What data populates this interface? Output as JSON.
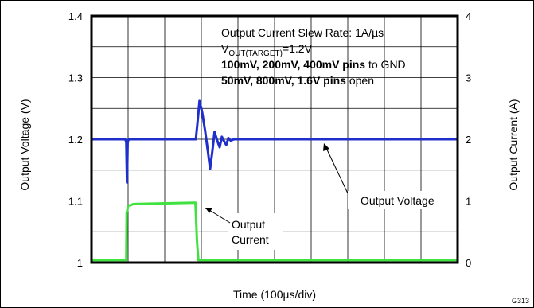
{
  "chart_data": {
    "type": "line",
    "xlabel": "Time (100µs/div)",
    "ylabel_left": "Output Voltage (V)",
    "ylabel_right": "Output Current (A)",
    "ylim_left": [
      1.0,
      1.4
    ],
    "ylim_right": [
      0,
      4
    ],
    "yticks_left": [
      "1",
      "1.1",
      "1.2",
      "1.3",
      "1.4"
    ],
    "yticks_right": [
      "0",
      "1",
      "2",
      "3",
      "4"
    ],
    "x_divisions": 10,
    "grid": true,
    "figure_code": "G313",
    "annotations": {
      "line1": "Output Current Slew Rate: 1A/µs",
      "line2_main": "V",
      "line2_sub": "OUT(TARGET)",
      "line2_tail": "=1.2V",
      "line3_bold": "100mV, 200mV, 400mV pins",
      "line3_tail": " to GND",
      "line4_bold": "50mV, 800mV, 1.6V pins",
      "line4_tail": " open",
      "voltage_label": "Output Voltage",
      "current_label_1": "Output",
      "current_label_2": "Current"
    },
    "series": [
      {
        "name": "Output Voltage",
        "axis": "left",
        "color": "#1f2fcc",
        "points": [
          [
            0,
            1.2
          ],
          [
            0.92,
            1.2
          ],
          [
            0.95,
            1.196
          ],
          [
            0.97,
            1.13
          ],
          [
            0.99,
            1.196
          ],
          [
            1.02,
            1.2
          ],
          [
            2.85,
            1.2
          ],
          [
            2.9,
            1.23
          ],
          [
            2.95,
            1.262
          ],
          [
            3.02,
            1.245
          ],
          [
            3.1,
            1.215
          ],
          [
            3.18,
            1.18
          ],
          [
            3.24,
            1.152
          ],
          [
            3.3,
            1.18
          ],
          [
            3.36,
            1.212
          ],
          [
            3.44,
            1.197
          ],
          [
            3.5,
            1.187
          ],
          [
            3.56,
            1.204
          ],
          [
            3.62,
            1.197
          ],
          [
            3.68,
            1.191
          ],
          [
            3.74,
            1.202
          ],
          [
            3.8,
            1.198
          ],
          [
            3.9,
            1.2
          ],
          [
            10,
            1.2
          ]
        ]
      },
      {
        "name": "Output Current",
        "axis": "right",
        "color": "#3fe23f",
        "points": [
          [
            0,
            0.04
          ],
          [
            0.95,
            0.04
          ],
          [
            0.96,
            0.8
          ],
          [
            1.0,
            0.92
          ],
          [
            1.15,
            0.95
          ],
          [
            2.8,
            0.97
          ],
          [
            2.84,
            0.97
          ],
          [
            2.88,
            0.35
          ],
          [
            2.92,
            0.04
          ],
          [
            10,
            0.04
          ]
        ]
      }
    ]
  }
}
